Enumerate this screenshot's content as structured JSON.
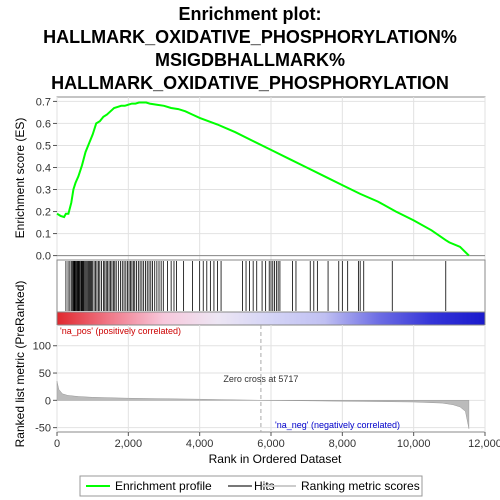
{
  "chart_data": {
    "type": "line",
    "title_lines": [
      "Enrichment plot:",
      "HALLMARK_OXIDATIVE_PHOSPHORYLATION%",
      "MSIGDBHALLMARK%",
      "HALLMARK_OXIDATIVE_PHOSPHORYLATION"
    ],
    "es_ylabel": "Enrichment score (ES)",
    "metric_ylabel": "Ranked list metric (PreRanked)",
    "xlabel": "Rank in Ordered Dataset",
    "x_ticks": [
      "0",
      "2,000",
      "4,000",
      "6,000",
      "8,000",
      "10,000",
      "12,000"
    ],
    "x_tick_values": [
      0,
      2000,
      4000,
      6000,
      8000,
      10000,
      12000
    ],
    "xlim": [
      0,
      12000
    ],
    "es_ylim": [
      -0.02,
      0.72
    ],
    "es_ticks": [
      "0.0",
      "0.1",
      "0.2",
      "0.3",
      "0.4",
      "0.5",
      "0.6",
      "0.7"
    ],
    "es_tick_values": [
      0,
      0.1,
      0.2,
      0.3,
      0.4,
      0.5,
      0.6,
      0.7
    ],
    "metric_ylim": [
      -58,
      138
    ],
    "metric_ticks": [
      "-50",
      "0",
      "50",
      "100"
    ],
    "metric_tick_values": [
      -50,
      0,
      50,
      100
    ],
    "grid": true,
    "series": [
      {
        "name": "Enrichment profile",
        "color": "#00ff00",
        "x": [
          0,
          100,
          200,
          250,
          320,
          400,
          460,
          520,
          600,
          700,
          800,
          900,
          1000,
          1100,
          1200,
          1300,
          1400,
          1500,
          1600,
          1700,
          1800,
          1900,
          2000,
          2100,
          2200,
          2300,
          2400,
          2500,
          2600,
          2800,
          3000,
          3200,
          3400,
          3600,
          3800,
          4000,
          4500,
          5000,
          5500,
          6000,
          6500,
          7000,
          7500,
          8000,
          8500,
          9000,
          9500,
          10000,
          10500,
          10900,
          11000,
          11300,
          11550
        ],
        "y": [
          0.19,
          0.18,
          0.175,
          0.19,
          0.19,
          0.24,
          0.3,
          0.33,
          0.36,
          0.41,
          0.47,
          0.51,
          0.55,
          0.6,
          0.61,
          0.63,
          0.64,
          0.655,
          0.67,
          0.675,
          0.68,
          0.68,
          0.685,
          0.69,
          0.69,
          0.695,
          0.695,
          0.695,
          0.69,
          0.685,
          0.68,
          0.67,
          0.665,
          0.655,
          0.64,
          0.625,
          0.595,
          0.56,
          0.52,
          0.48,
          0.44,
          0.4,
          0.36,
          0.32,
          0.28,
          0.245,
          0.2,
          0.16,
          0.115,
          0.07,
          0.06,
          0.04,
          0.0
        ]
      }
    ],
    "hit_ranks": [
      250,
      310,
      360,
      400,
      430,
      460,
      480,
      500,
      520,
      545,
      570,
      590,
      610,
      630,
      650,
      680,
      700,
      720,
      740,
      760,
      790,
      820,
      850,
      880,
      910,
      940,
      970,
      1000,
      1040,
      1080,
      1120,
      1160,
      1200,
      1250,
      1300,
      1340,
      1380,
      1420,
      1460,
      1500,
      1540,
      1580,
      1620,
      1660,
      1720,
      1780,
      1830,
      1880,
      1930,
      1980,
      2020,
      2060,
      2100,
      2140,
      2180,
      2230,
      2280,
      2330,
      2380,
      2430,
      2480,
      2530,
      2580,
      2630,
      2680,
      2740,
      2800,
      2860,
      2920,
      2980,
      3100,
      3200,
      3280,
      3350,
      3550,
      3800,
      4000,
      4100,
      4200,
      4300,
      4400,
      4500,
      4600,
      5200,
      5300,
      5400,
      5500,
      5600,
      5750,
      5850,
      5950,
      6000,
      6050,
      6100,
      6150,
      6200,
      6250,
      6600,
      6700,
      7100,
      7200,
      7300,
      7600,
      7900,
      8000,
      8150,
      8450,
      8500,
      8600,
      9400,
      10900
    ],
    "metric_profile": {
      "x": [
        0,
        50,
        150,
        300,
        600,
        1000,
        2000,
        4000,
        5717,
        8000,
        10000,
        10800,
        11100,
        11300,
        11450,
        11550
      ],
      "y": [
        35,
        20,
        12,
        9,
        7,
        5.5,
        4,
        2,
        0,
        -1.5,
        -3,
        -5,
        -8,
        -12,
        -20,
        -52
      ]
    },
    "heat_colors": [
      "#e0282e",
      "#f07a8a",
      "#f7c8dc",
      "#ede6f4",
      "#d4d4f6",
      "#c0c0f2",
      "#6e6ee4",
      "#3434d8",
      "#1a1acc"
    ],
    "zero_cross_label": "Zero cross at 5717",
    "zero_cross_rank": 5717,
    "pos_label": "'na_pos' (positively correlated)",
    "neg_label": "'na_neg' (negatively correlated)",
    "pos_color": "#cc0000",
    "neg_color": "#0000cc",
    "legend": [
      {
        "label": "Enrichment profile",
        "color": "#00ff00"
      },
      {
        "label": "Hits",
        "color": "#777777"
      },
      {
        "label": "Ranking metric scores",
        "color": "#cccccc"
      }
    ],
    "legend_position": "bottom"
  }
}
